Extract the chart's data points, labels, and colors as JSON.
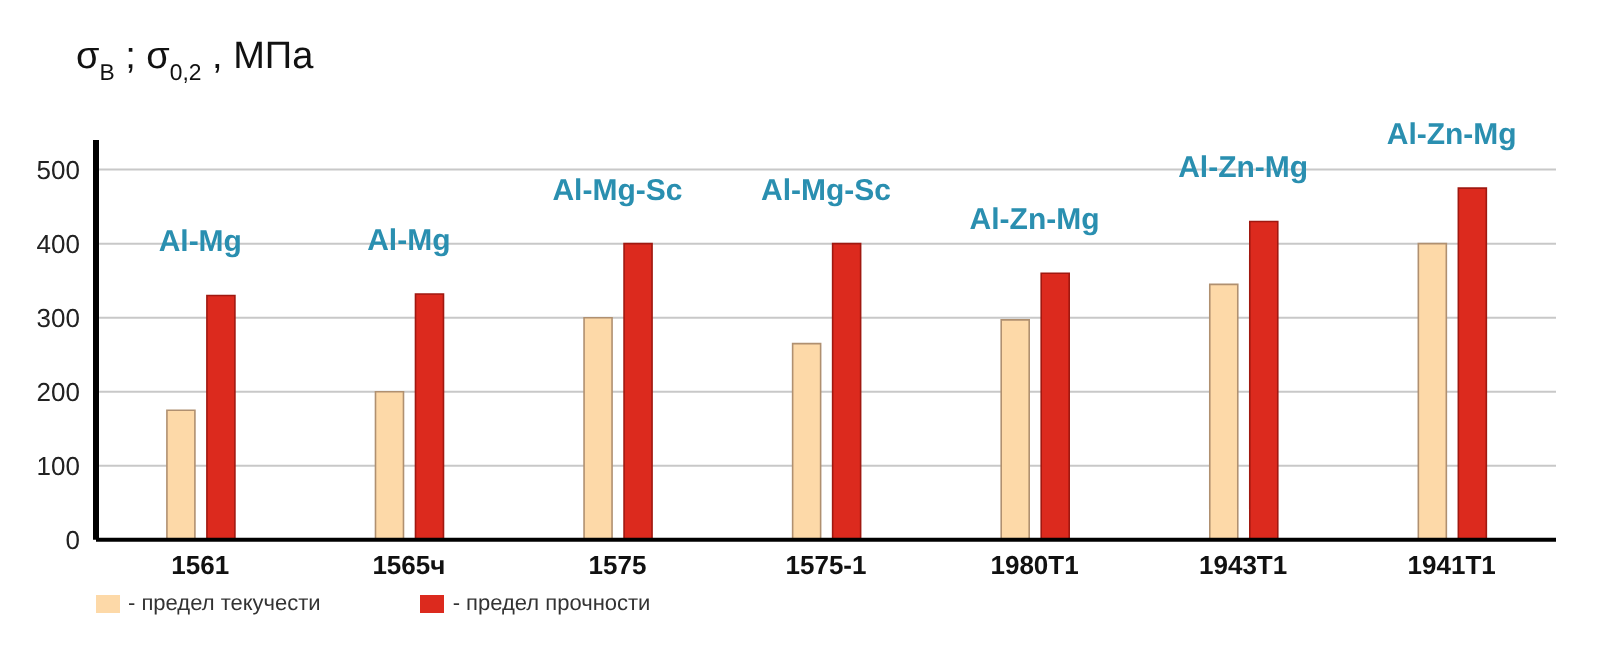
{
  "chart_data": {
    "type": "bar",
    "ylabel": "σ$_{В}$ ; σ$_{0,2}$ , МПа",
    "categories": [
      "1561",
      "1565ч",
      "1575",
      "1575-1",
      "1980T1",
      "1943T1",
      "1941T1"
    ],
    "series": [
      {
        "name": "- предел текучести",
        "color": "#fdd9a8",
        "values": [
          175,
          200,
          300,
          265,
          297,
          345,
          400
        ]
      },
      {
        "name": "- предел прочности",
        "color": "#dc2a1e",
        "values": [
          330,
          332,
          400,
          400,
          360,
          430,
          475
        ]
      }
    ],
    "ylim": [
      0,
      540
    ],
    "yticks": [
      0,
      100,
      200,
      300,
      400,
      500
    ],
    "grid": "y",
    "legend": "bottom left",
    "annotations": [
      "Al-Mg",
      "Al-Mg",
      "Al-Mg-Sc",
      "Al-Mg-Sc",
      "Al-Zn-Mg",
      "Al-Zn-Mg",
      "Al-Zn-Mg"
    ]
  }
}
